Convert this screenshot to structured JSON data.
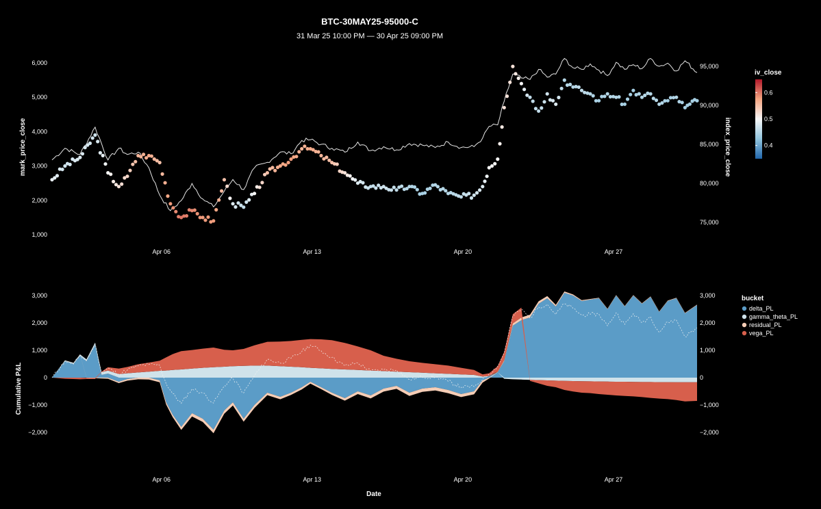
{
  "title": "BTC-30MAY25-95000-C",
  "subtitle": "31 Mar 25 10:00 PM — 30 Apr 25 09:00 PM",
  "colors": {
    "background": "#000000",
    "text": "#ffffff",
    "index_line": "#e6e6e6",
    "delta_PL": "#5b9cc7",
    "gamma_theta_PL": "#cfe2ea",
    "residual_PL": "#f5cdb6",
    "vega_PL": "#d75f4c",
    "cum_line": "#f2f2f2",
    "iv_low": "#2166ac",
    "iv_mid": "#f7f7f7",
    "iv_high": "#b2182b"
  },
  "chart_data": [
    {
      "type": "scatter",
      "xlabel": "",
      "ylabel": "mark_price_close",
      "y2label": "index_price_close",
      "x_ticks": [
        "Apr 06",
        "Apr 13",
        "Apr 20",
        "Apr 27"
      ],
      "x_tick_days": [
        5.08,
        12.08,
        19.08,
        26.08
      ],
      "x_range_days": [
        0,
        29.96
      ],
      "ylim": [
        900,
        6200
      ],
      "y_ticks": [
        1000,
        2000,
        3000,
        4000,
        5000,
        6000
      ],
      "y_tick_labels": [
        "1,000",
        "2,000",
        "3,000",
        "4,000",
        "5,000",
        "6,000"
      ],
      "y2lim": [
        73000,
        96300
      ],
      "y2_ticks": [
        75000,
        80000,
        85000,
        90000,
        95000
      ],
      "y2_tick_labels": [
        "75,000",
        "80,000",
        "85,000",
        "90,000",
        "95,000"
      ],
      "color_scale": {
        "title": "iv_close",
        "range": [
          0.35,
          0.65
        ],
        "ticks": [
          0.4,
          0.5,
          0.6
        ],
        "tick_labels": [
          "0.4",
          "0.5",
          "0.6"
        ]
      },
      "series": [
        {
          "name": "index_price_close",
          "kind": "line",
          "days": [
            0,
            0.6,
            1.3,
            2.0,
            2.6,
            3.1,
            3.5,
            4.0,
            4.5,
            5.0,
            5.5,
            6.0,
            6.5,
            7.0,
            7.5,
            8.0,
            8.4,
            8.9,
            9.4,
            10.0,
            10.6,
            11.1,
            11.6,
            12.0,
            12.5,
            13.0,
            13.6,
            14.2,
            14.8,
            15.4,
            16.0,
            16.6,
            17.2,
            17.8,
            18.4,
            19.0,
            19.6,
            20.0,
            20.3,
            20.7,
            21.0,
            21.4,
            21.8,
            22.2,
            22.6,
            23.0,
            23.4,
            23.8,
            24.2,
            24.6,
            25.0,
            25.4,
            25.8,
            26.2,
            26.6,
            27.0,
            27.4,
            27.8,
            28.2,
            28.6,
            29.0,
            29.4,
            29.96
          ],
          "values": [
            83000,
            84500,
            83700,
            87200,
            83000,
            84500,
            83700,
            84000,
            82000,
            78500,
            76500,
            77800,
            80000,
            78000,
            77000,
            79000,
            80500,
            79200,
            82000,
            82700,
            84000,
            83800,
            85500,
            85600,
            85000,
            84500,
            84000,
            85300,
            84200,
            84700,
            84300,
            85100,
            84900,
            84600,
            85300,
            84600,
            84700,
            85800,
            87300,
            87500,
            90500,
            94000,
            93500,
            93300,
            94600,
            93600,
            94000,
            96000,
            94800,
            94600,
            95300,
            94500,
            93800,
            95500,
            94600,
            95200,
            94700,
            96000,
            95000,
            95400,
            94400,
            95700,
            94200
          ]
        },
        {
          "name": "mark_price_close",
          "kind": "points",
          "days": [
            0,
            0.6,
            1.3,
            2.0,
            2.6,
            3.1,
            3.5,
            4.0,
            4.5,
            5.0,
            5.5,
            6.0,
            6.5,
            7.0,
            7.5,
            8.0,
            8.4,
            8.9,
            9.4,
            10.0,
            10.6,
            11.1,
            11.6,
            12.0,
            12.5,
            13.0,
            13.6,
            14.2,
            14.8,
            15.4,
            16.0,
            16.6,
            17.2,
            17.8,
            18.4,
            19.0,
            19.6,
            20.0,
            20.3,
            20.7,
            21.0,
            21.4,
            21.8,
            22.2,
            22.6,
            23.0,
            23.4,
            23.8,
            24.2,
            24.6,
            25.0,
            25.4,
            25.8,
            26.2,
            26.6,
            27.0,
            27.4,
            27.8,
            28.2,
            28.6,
            29.0,
            29.4,
            29.96
          ],
          "values": [
            2600,
            3000,
            3250,
            3900,
            2800,
            2400,
            2700,
            3300,
            3300,
            3100,
            1900,
            1500,
            1700,
            1500,
            1400,
            2600,
            1900,
            1800,
            2200,
            2800,
            3000,
            3200,
            3500,
            3500,
            3300,
            3100,
            2800,
            2500,
            2400,
            2400,
            2300,
            2400,
            2200,
            2450,
            2200,
            2100,
            2150,
            2400,
            2950,
            3200,
            4700,
            5900,
            5400,
            5000,
            4600,
            5100,
            4800,
            5500,
            5300,
            5200,
            5100,
            4900,
            5100,
            5000,
            4800,
            5200,
            5000,
            5100,
            4800,
            4900,
            5000,
            4700,
            4900
          ],
          "iv": [
            0.49,
            0.47,
            0.48,
            0.47,
            0.5,
            0.52,
            0.53,
            0.56,
            0.57,
            0.55,
            0.58,
            0.6,
            0.59,
            0.58,
            0.58,
            0.55,
            0.48,
            0.46,
            0.5,
            0.55,
            0.57,
            0.58,
            0.56,
            0.57,
            0.56,
            0.55,
            0.52,
            0.48,
            0.46,
            0.47,
            0.46,
            0.45,
            0.44,
            0.45,
            0.45,
            0.46,
            0.47,
            0.48,
            0.5,
            0.5,
            0.52,
            0.52,
            0.5,
            0.46,
            0.46,
            0.47,
            0.48,
            0.45,
            0.45,
            0.46,
            0.45,
            0.44,
            0.45,
            0.45,
            0.44,
            0.44,
            0.45,
            0.45,
            0.45,
            0.44,
            0.45,
            0.44,
            0.44
          ]
        }
      ]
    },
    {
      "type": "area",
      "xlabel": "Date",
      "ylabel": "Cumulative P&L",
      "x_ticks": [
        "Apr 06",
        "Apr 13",
        "Apr 20",
        "Apr 27"
      ],
      "x_tick_days": [
        5.08,
        12.08,
        19.08,
        26.08
      ],
      "x_range_days": [
        0,
        29.96
      ],
      "ylim": [
        -2800,
        3500
      ],
      "y_ticks": [
        -2000,
        -1000,
        0,
        1000,
        2000,
        3000
      ],
      "y_tick_labels": [
        "−2,000",
        "−1,000",
        "0",
        "1,000",
        "2,000",
        "3,000"
      ],
      "legend": {
        "title": "bucket",
        "placement": "right"
      },
      "days": [
        0,
        0.6,
        1.0,
        1.3,
        1.6,
        2.0,
        2.3,
        2.6,
        3.1,
        3.5,
        4.0,
        4.5,
        5.0,
        5.3,
        5.6,
        6.0,
        6.5,
        7.0,
        7.5,
        8.0,
        8.4,
        8.9,
        9.4,
        10.0,
        10.6,
        11.1,
        11.6,
        12.0,
        12.5,
        13.0,
        13.6,
        14.2,
        14.8,
        15.4,
        16.0,
        16.6,
        17.2,
        17.8,
        18.4,
        19.0,
        19.6,
        20.0,
        20.3,
        20.7,
        21.0,
        21.4,
        21.8,
        22.2,
        22.6,
        23.0,
        23.4,
        23.8,
        24.2,
        24.6,
        25.0,
        25.4,
        25.8,
        26.2,
        26.6,
        27.0,
        27.4,
        27.8,
        28.2,
        28.6,
        29.0,
        29.4,
        29.96
      ],
      "series": [
        {
          "name": "delta_PL",
          "values": [
            0,
            600,
            500,
            800,
            600,
            1200,
            100,
            150,
            -150,
            -50,
            0,
            0,
            -100,
            -900,
            -1350,
            -1800,
            -1300,
            -1500,
            -1900,
            -1200,
            -900,
            -1500,
            -1000,
            -550,
            -700,
            -550,
            -350,
            -150,
            -350,
            -550,
            -750,
            -500,
            -650,
            -400,
            -300,
            -550,
            -400,
            -350,
            -450,
            -600,
            -500,
            -100,
            50,
            200,
            600,
            1900,
            2100,
            2200,
            2700,
            2900,
            2600,
            3100,
            3000,
            2800,
            2850,
            2900,
            2500,
            3000,
            2600,
            3000,
            2700,
            2950,
            2400,
            2800,
            2900,
            2350,
            2650
          ]
        },
        {
          "name": "gamma_theta_PL",
          "values": [
            0,
            30,
            40,
            50,
            70,
            80,
            100,
            110,
            130,
            160,
            190,
            220,
            250,
            260,
            280,
            300,
            330,
            360,
            380,
            400,
            420,
            430,
            440,
            440,
            420,
            400,
            380,
            360,
            340,
            320,
            300,
            280,
            260,
            240,
            220,
            200,
            180,
            160,
            140,
            120,
            100,
            40,
            10,
            0,
            -40,
            -60,
            -70,
            -80,
            -90,
            -100,
            -110,
            -120,
            -125,
            -130,
            -135,
            -140,
            -145,
            -150,
            -150,
            -155,
            -160,
            -160,
            -165,
            -165,
            -170,
            -170,
            -170
          ]
        },
        {
          "name": "residual_PL",
          "values": [
            0,
            5,
            5,
            5,
            -10,
            -20,
            -30,
            -40,
            -50,
            -60,
            -60,
            -70,
            -70,
            -80,
            -90,
            -110,
            -120,
            -120,
            -130,
            -120,
            -120,
            -110,
            -110,
            -90,
            -90,
            -80,
            -80,
            -70,
            -70,
            -80,
            -90,
            -100,
            -110,
            -110,
            -110,
            -120,
            -120,
            -120,
            -120,
            -110,
            -110,
            -80,
            -30,
            20,
            40,
            80,
            100,
            100,
            90,
            80,
            60,
            50,
            40,
            30,
            25,
            20,
            20,
            20,
            20,
            20,
            20,
            20,
            20,
            20,
            20,
            20,
            20
          ]
        },
        {
          "name": "vega_PL",
          "values": [
            0,
            -40,
            -50,
            -60,
            -40,
            -30,
            20,
            120,
            200,
            230,
            300,
            330,
            370,
            480,
            580,
            670,
            680,
            700,
            720,
            620,
            580,
            620,
            740,
            870,
            900,
            940,
            1000,
            1050,
            1060,
            1050,
            970,
            860,
            740,
            560,
            470,
            400,
            360,
            330,
            300,
            240,
            180,
            80,
            100,
            200,
            300,
            340,
            360,
            -40,
            -120,
            -200,
            -240,
            -330,
            -380,
            -420,
            -430,
            -460,
            -480,
            -500,
            -520,
            -530,
            -550,
            -580,
            -600,
            -620,
            -650,
            -700,
            -680
          ]
        },
        {
          "name": "total",
          "kind": "dashed-line",
          "values": [
            0,
            595,
            495,
            795,
            620,
            1230,
            190,
            340,
            130,
            280,
            430,
            480,
            450,
            -220,
            -580,
            -940,
            -410,
            -560,
            -930,
            -300,
            -20,
            -560,
            70,
            670,
            530,
            710,
            950,
            1190,
            980,
            740,
            430,
            540,
            240,
            290,
            280,
            -70,
            20,
            20,
            -130,
            -350,
            -330,
            -60,
            130,
            420,
            900,
            2260,
            2490,
            2180,
            2580,
            2680,
            2310,
            2700,
            2535,
            2280,
            2310,
            2320,
            1895,
            2370,
            1950,
            2335,
            2010,
            2230,
            1655,
            2035,
            2100,
            1500,
            1820
          ]
        }
      ]
    }
  ]
}
